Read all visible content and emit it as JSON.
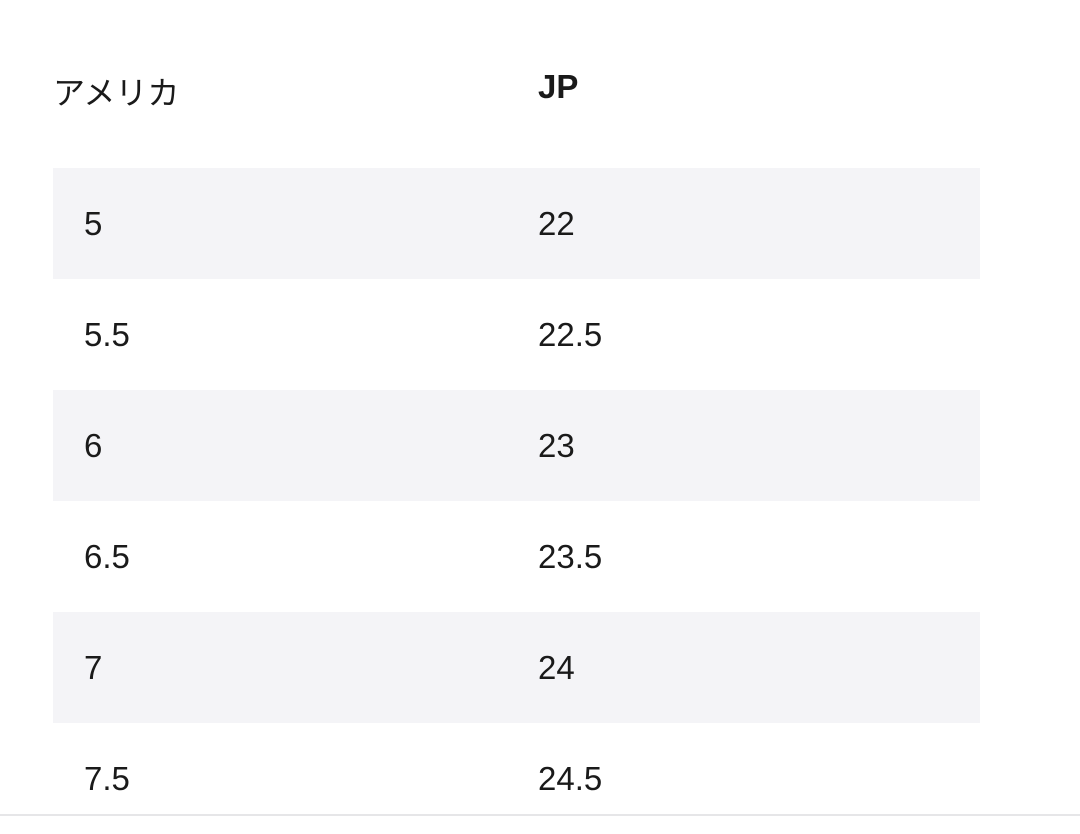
{
  "table": {
    "headers": [
      "アメリカ",
      "JP"
    ],
    "rows": [
      [
        "5",
        "22"
      ],
      [
        "5.5",
        "22.5"
      ],
      [
        "6",
        "23"
      ],
      [
        "6.5",
        "23.5"
      ],
      [
        "7",
        "24"
      ],
      [
        "7.5",
        "24.5"
      ]
    ]
  },
  "colors": {
    "stripe": "#f4f4f7",
    "text": "#1a1a1a"
  }
}
